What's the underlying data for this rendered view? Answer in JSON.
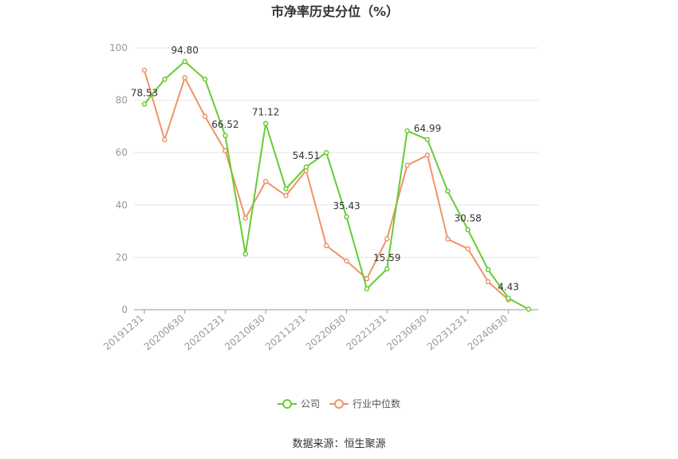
{
  "chart_data": {
    "type": "line",
    "title": "市净率历史分位（%）",
    "ylim": [
      0,
      100
    ],
    "yticks": [
      0,
      20,
      40,
      60,
      80,
      100
    ],
    "x": [
      "20191231",
      "20200331",
      "20200630",
      "20200930",
      "20201231",
      "20210331",
      "20210630",
      "20210930",
      "20211231",
      "20220331",
      "20220630",
      "20220930",
      "20221231",
      "20230331",
      "20230630",
      "20230930",
      "20231231",
      "20240331",
      "20240630",
      "20240930"
    ],
    "xtick_labels": [
      "20191231",
      "20200630",
      "20201231",
      "20210630",
      "20211231",
      "20220630",
      "20221231",
      "20230630",
      "20231231",
      "20240630"
    ],
    "series": [
      {
        "name": "公司",
        "color": "#66cc33",
        "values": [
          78.53,
          88.0,
          94.8,
          88.0,
          66.52,
          21.3,
          71.12,
          46.2,
          54.51,
          60.0,
          35.43,
          8.0,
          15.59,
          68.3,
          64.99,
          45.3,
          30.58,
          15.3,
          4.43,
          0.2
        ],
        "labels": [
          "78.53",
          "",
          "94.80",
          "",
          "66.52",
          "",
          "71.12",
          "",
          "54.51",
          "",
          "35.43",
          "",
          "15.59",
          "",
          "64.99",
          "",
          "30.58",
          "",
          "4.43",
          ""
        ]
      },
      {
        "name": "行业中位数",
        "color": "#f09366",
        "values": [
          91.5,
          64.9,
          88.6,
          73.8,
          60.7,
          35.0,
          49.0,
          43.6,
          53.2,
          24.5,
          18.6,
          11.8,
          27.1,
          55.2,
          59.0,
          27.0,
          23.3,
          10.7,
          3.8,
          null
        ],
        "labels": []
      }
    ],
    "legend_position": "bottom-center",
    "grid": true
  },
  "source_text": "数据来源：恒生聚源"
}
